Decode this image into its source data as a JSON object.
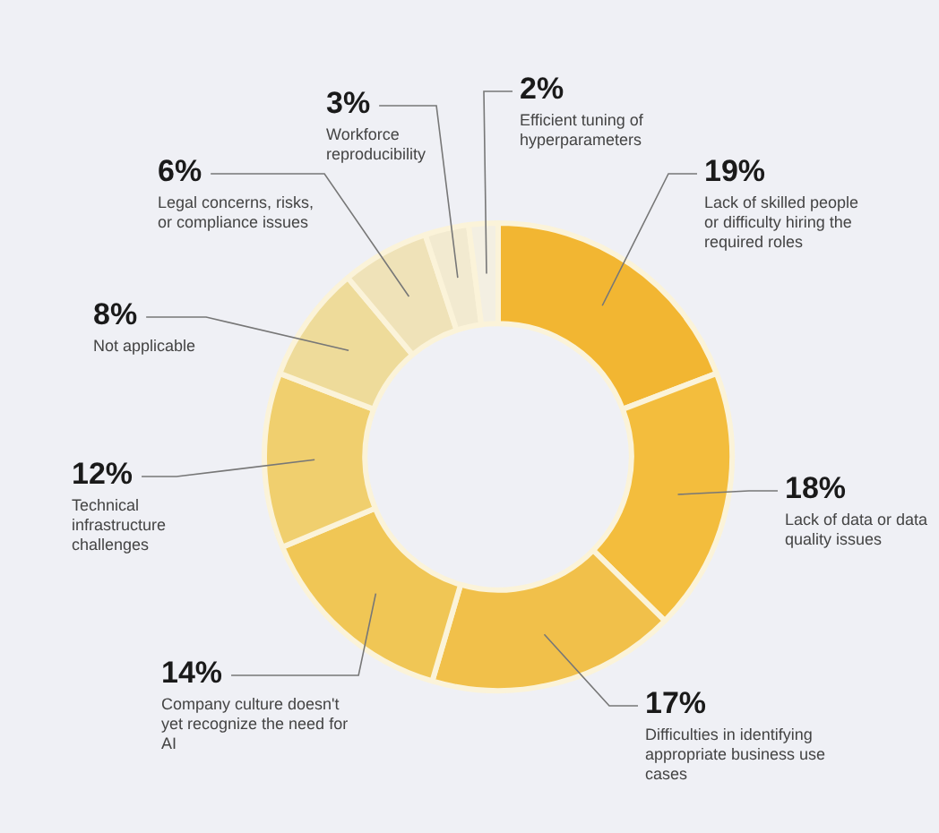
{
  "chart_data": {
    "type": "donut",
    "categories": [
      "Lack of skilled people or difficulty hiring the required roles",
      "Lack of data or data quality issues",
      "Difficulties in identifying appropriate business use cases",
      "Company culture doesn't yet recognize the need for AI",
      "Technical infrastructure challenges",
      "Not applicable",
      "Legal concerns, risks, or compliance issues",
      "Workforce reproducibility",
      "Efficient tuning of hyperparameters"
    ],
    "values": [
      19,
      18,
      17,
      14,
      12,
      8,
      6,
      3,
      2
    ],
    "value_labels": [
      "19%",
      "18%",
      "17%",
      "14%",
      "12%",
      "8%",
      "6%",
      "3%",
      "2%"
    ],
    "colors": [
      "#f2b632",
      "#f3bd3d",
      "#f1c04a",
      "#f0c655",
      "#f0cf6e",
      "#eedb9a",
      "#efe2b8",
      "#f2ead0",
      "#f3efe2"
    ],
    "legend": false
  }
}
